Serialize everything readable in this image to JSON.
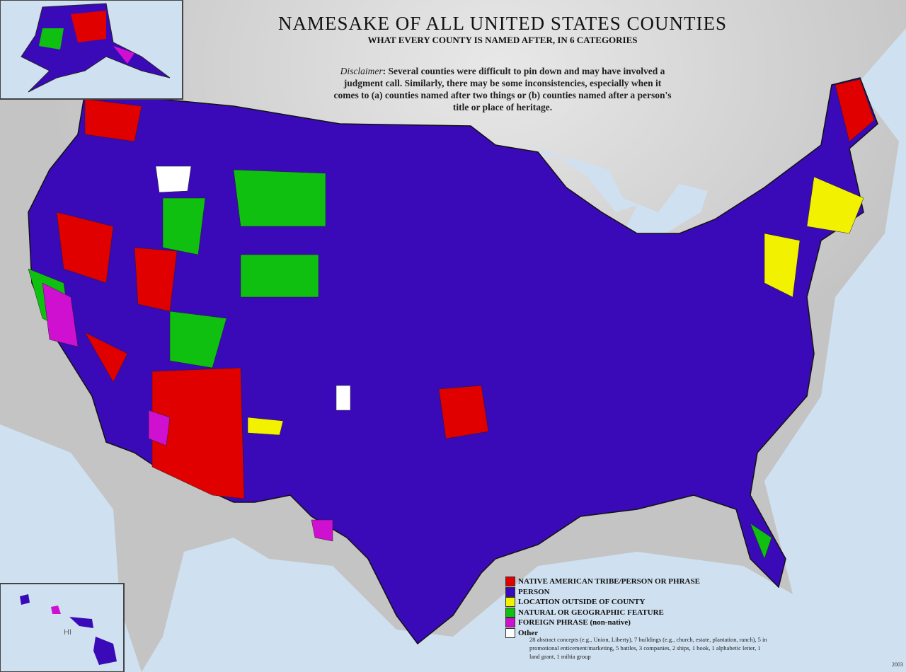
{
  "title": "NAMESAKE OF ALL UNITED STATES COUNTIES",
  "subtitle": "WHAT EVERY COUNTY IS NAMED AFTER, IN 6 CATEGORIES",
  "disclaimer": {
    "label": "Disclaimer",
    "text": ": Several counties were difficult to pin down and may have involved a judgment call. Similarly, there may be some inconsistencies, especially when it comes to (a) counties named after two things or (b) counties named after a person's title or place of heritage."
  },
  "legend": [
    {
      "label": "NATIVE AMERICAN TRIBE/PERSON OR PHRASE",
      "color": "#e00000"
    },
    {
      "label": "PERSON",
      "color": "#3a0ab8"
    },
    {
      "label": "LOCATION OUTSIDE OF COUNTY",
      "color": "#f2f200"
    },
    {
      "label": "NATURAL OR GEOGRAPHIC FEATURE",
      "color": "#10c010"
    },
    {
      "label": "FOREIGN PHRASE (non-native)",
      "color": "#d010d0"
    },
    {
      "label": "Other",
      "color": "#ffffff"
    }
  ],
  "other_note": "28 abstract concepts (e.g., Union, Liberty), 7 buildings (e.g., church, estate, plantation, ranch), 5 in promotional enticement/marketing, 5 battles, 3 companies, 2 ships, 1 book, 1 alphabetic letter, 1 land grant, 1 miltia group",
  "hawaii_label": "HI",
  "year": "2003",
  "colors": {
    "ocean": "#cfe0f0",
    "land": "#c4c4c4"
  }
}
